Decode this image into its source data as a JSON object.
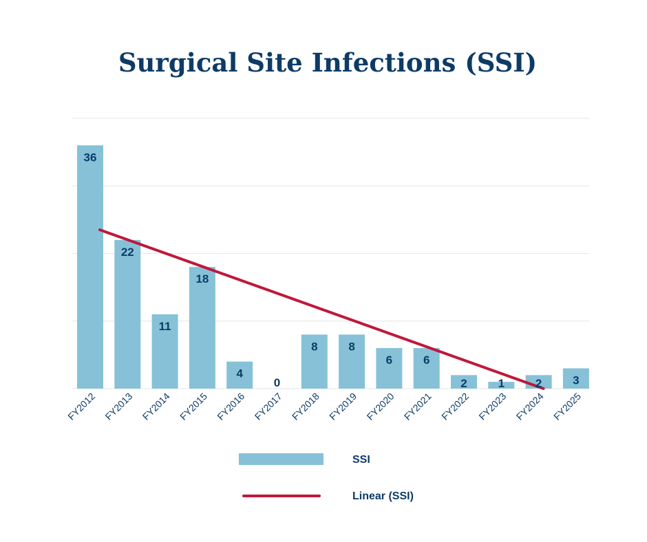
{
  "chart_data": {
    "type": "bar",
    "title": "Surgical Site Infections (SSI)",
    "xlabel": "",
    "ylabel": "",
    "ylim": [
      0,
      40
    ],
    "gridlines": [
      0,
      10,
      20,
      30,
      40
    ],
    "categories": [
      "FY2012",
      "FY2013",
      "FY2014",
      "FY2015",
      "FY2016",
      "FY2017",
      "FY2018",
      "FY2019",
      "FY2020",
      "FY2021",
      "FY2022",
      "FY2023",
      "FY2024",
      "FY2025"
    ],
    "series": [
      {
        "name": "SSI",
        "type": "bar",
        "color": "#86c1d8",
        "values": [
          36,
          22,
          11,
          18,
          4,
          0,
          8,
          8,
          6,
          6,
          2,
          1,
          2,
          3
        ]
      },
      {
        "name": "Linear (SSI)",
        "type": "line",
        "color": "#c0183a",
        "start": {
          "category": "FY2012",
          "value": 23.5
        },
        "end": {
          "category": "FY2024",
          "value": 0
        }
      }
    ],
    "legend": {
      "position": "bottom",
      "items": [
        {
          "label": "SSI",
          "symbol": "bar"
        },
        {
          "label": "Linear (SSI)",
          "symbol": "line"
        }
      ]
    }
  }
}
